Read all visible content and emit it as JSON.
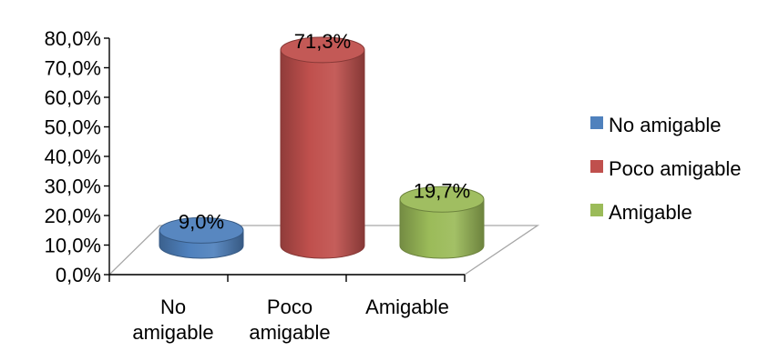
{
  "chart_data": {
    "type": "bar",
    "style": "3d-cylinder",
    "categories": [
      "No amigable",
      "Poco amigable",
      "Amigable"
    ],
    "category_lines": [
      [
        "No",
        "amigable"
      ],
      [
        "Poco",
        "amigable"
      ],
      [
        "Amigable"
      ]
    ],
    "values": [
      9.0,
      71.3,
      19.7
    ],
    "data_labels": [
      "9,0%",
      "71,3%",
      "19,7%"
    ],
    "colors": [
      "#4F81BD",
      "#C0504D",
      "#9BBB59"
    ],
    "yticks": [
      "0,0%",
      "10,0%",
      "20,0%",
      "30,0%",
      "40,0%",
      "50,0%",
      "60,0%",
      "70,0%",
      "80,0%"
    ],
    "ylim": [
      0,
      80
    ],
    "legend": {
      "position": "right",
      "entries": [
        "No amigable",
        "Poco amigable",
        "Amigable"
      ]
    },
    "grid": false
  }
}
